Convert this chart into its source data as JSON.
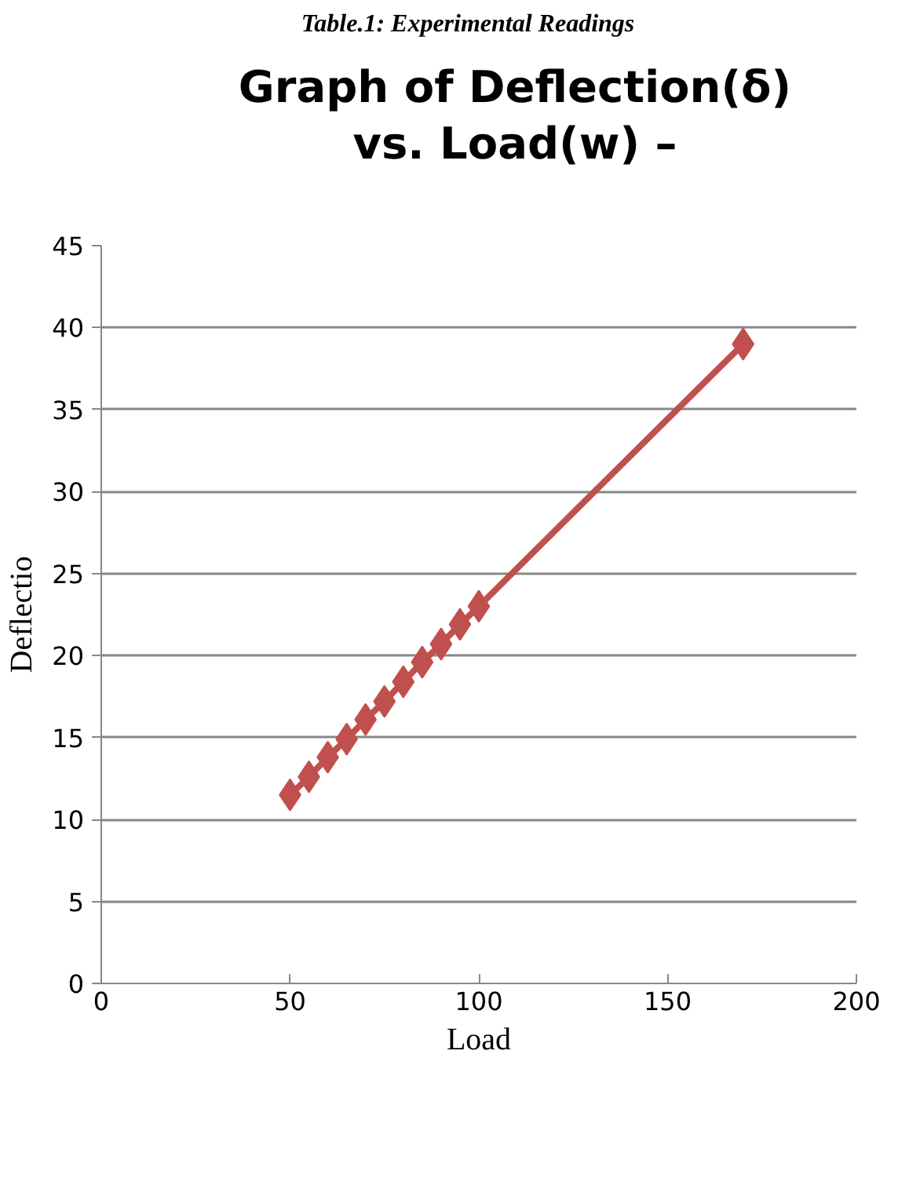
{
  "chart_data": {
    "type": "line",
    "title": "Graph of Deflection(δ)\nvs. Load(w) –",
    "xlabel": "Load",
    "ylabel": "Deflectio",
    "annotations": [
      "Table.1: Experimental Readings"
    ],
    "x": [
      50,
      55,
      60,
      65,
      70,
      75,
      80,
      85,
      90,
      95,
      100,
      170
    ],
    "series": [
      {
        "color": "#c0504d",
        "values": [
          11.5,
          12.6,
          13.8,
          14.9,
          16.1,
          17.2,
          18.4,
          19.6,
          20.7,
          21.9,
          23.0,
          39.0
        ]
      }
    ],
    "xlim": [
      0,
      200
    ],
    "xticks": [
      0,
      50,
      100,
      150,
      200
    ],
    "ylim": [
      0,
      45
    ],
    "yticks": [
      0,
      5,
      10,
      15,
      20,
      25,
      30,
      35,
      40,
      45
    ],
    "grid": "y",
    "marker": "diamond",
    "line_style": "solid"
  }
}
